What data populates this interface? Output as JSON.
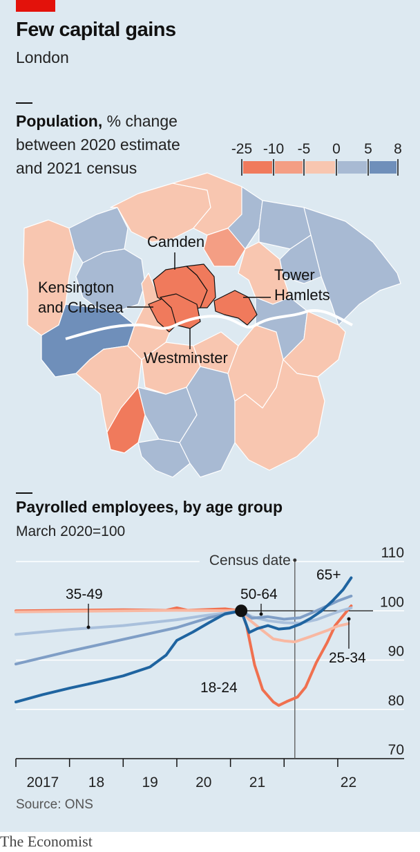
{
  "title": "Few capital gains",
  "subtitle": "London",
  "map": {
    "heading_bold": "Population,",
    "heading_rest": " % change",
    "heading_line2": "between 2020 estimate",
    "heading_line3": "and 2021 census",
    "legend_ticks": [
      "-25",
      "-10",
      "-5",
      "0",
      "5",
      "8"
    ],
    "legend_colors": [
      "#f07a5c",
      "#f49e84",
      "#f8c6b0",
      "#a8bad3",
      "#6f8fba"
    ],
    "labels": [
      "Camden",
      "Kensington",
      "and Chelsea",
      "Tower",
      "Hamlets",
      "Westminster"
    ]
  },
  "chart_data": {
    "type": "line",
    "title": "Payrolled employees, by age group",
    "subtitle": "March 2020=100",
    "ylim": [
      70,
      110
    ],
    "yticks": [
      70,
      80,
      90,
      100,
      110
    ],
    "xticks": [
      "2017",
      "18",
      "19",
      "20",
      "21",
      "22"
    ],
    "annotation": "Census date",
    "annotation_x": 2021.2,
    "series": [
      {
        "name": "18-24",
        "color": "#f0704f",
        "points": [
          [
            2016.0,
            100.0
          ],
          [
            2017.0,
            100.1
          ],
          [
            2018.0,
            100.2
          ],
          [
            2018.8,
            100.1
          ],
          [
            2019.0,
            100.6
          ],
          [
            2019.2,
            100.1
          ],
          [
            2019.9,
            100.4
          ],
          [
            2020.2,
            100.0
          ],
          [
            2020.3,
            97.0
          ],
          [
            2020.45,
            89.0
          ],
          [
            2020.6,
            84.0
          ],
          [
            2020.8,
            81.5
          ],
          [
            2020.9,
            80.8
          ],
          [
            2021.05,
            81.6
          ],
          [
            2021.25,
            82.5
          ],
          [
            2021.4,
            84.5
          ],
          [
            2021.6,
            89.5
          ],
          [
            2021.8,
            93.5
          ],
          [
            2021.95,
            97.0
          ],
          [
            2022.1,
            99.0
          ],
          [
            2022.25,
            101.0
          ]
        ]
      },
      {
        "name": "25-34",
        "color": "#f8b8a2",
        "points": [
          [
            2016.0,
            99.8
          ],
          [
            2017.0,
            99.9
          ],
          [
            2018.0,
            100.0
          ],
          [
            2019.0,
            100.1
          ],
          [
            2020.2,
            100.0
          ],
          [
            2020.35,
            98.2
          ],
          [
            2020.6,
            96.0
          ],
          [
            2020.8,
            94.3
          ],
          [
            2021.0,
            93.9
          ],
          [
            2021.2,
            93.7
          ],
          [
            2021.5,
            94.8
          ],
          [
            2021.8,
            96.0
          ],
          [
            2022.0,
            96.9
          ],
          [
            2022.2,
            97.4
          ]
        ]
      },
      {
        "name": "35-49",
        "color": "#a9c0dc",
        "points": [
          [
            2016.0,
            95.2
          ],
          [
            2017.0,
            96.2
          ],
          [
            2018.0,
            97.0
          ],
          [
            2019.0,
            98.2
          ],
          [
            2019.5,
            99.0
          ],
          [
            2020.2,
            100.0
          ],
          [
            2020.4,
            98.8
          ],
          [
            2020.7,
            98.0
          ],
          [
            2021.0,
            97.6
          ],
          [
            2021.3,
            97.5
          ],
          [
            2021.6,
            98.2
          ],
          [
            2022.0,
            99.8
          ],
          [
            2022.25,
            100.6
          ]
        ]
      },
      {
        "name": "50-64",
        "color": "#7f9ec6",
        "points": [
          [
            2016.0,
            89.2
          ],
          [
            2017.0,
            91.8
          ],
          [
            2018.0,
            94.2
          ],
          [
            2019.0,
            96.6
          ],
          [
            2019.6,
            98.6
          ],
          [
            2020.2,
            100.0
          ],
          [
            2020.4,
            98.5
          ],
          [
            2020.7,
            98.8
          ],
          [
            2021.0,
            98.3
          ],
          [
            2021.3,
            98.6
          ],
          [
            2021.6,
            100.0
          ],
          [
            2022.0,
            102.0
          ],
          [
            2022.25,
            103.0
          ]
        ]
      },
      {
        "name": "65+",
        "color": "#1f64a0",
        "points": [
          [
            2016.0,
            81.5
          ],
          [
            2016.5,
            83.0
          ],
          [
            2017.0,
            84.3
          ],
          [
            2017.5,
            85.5
          ],
          [
            2018.0,
            86.8
          ],
          [
            2018.5,
            88.6
          ],
          [
            2018.8,
            91.0
          ],
          [
            2019.0,
            94.0
          ],
          [
            2019.3,
            95.7
          ],
          [
            2019.6,
            97.6
          ],
          [
            2019.9,
            99.4
          ],
          [
            2020.2,
            100.0
          ],
          [
            2020.35,
            95.6
          ],
          [
            2020.5,
            96.4
          ],
          [
            2020.7,
            97.0
          ],
          [
            2020.9,
            96.3
          ],
          [
            2021.1,
            96.5
          ],
          [
            2021.3,
            97.3
          ],
          [
            2021.5,
            98.5
          ],
          [
            2021.7,
            100.0
          ],
          [
            2021.9,
            102.0
          ],
          [
            2022.1,
            104.3
          ],
          [
            2022.25,
            106.7
          ]
        ]
      }
    ],
    "labels": [
      "35-49",
      "50-64",
      "65+",
      "18-24",
      "25-34"
    ]
  },
  "source": "Source: ONS",
  "footer": "The Economist"
}
